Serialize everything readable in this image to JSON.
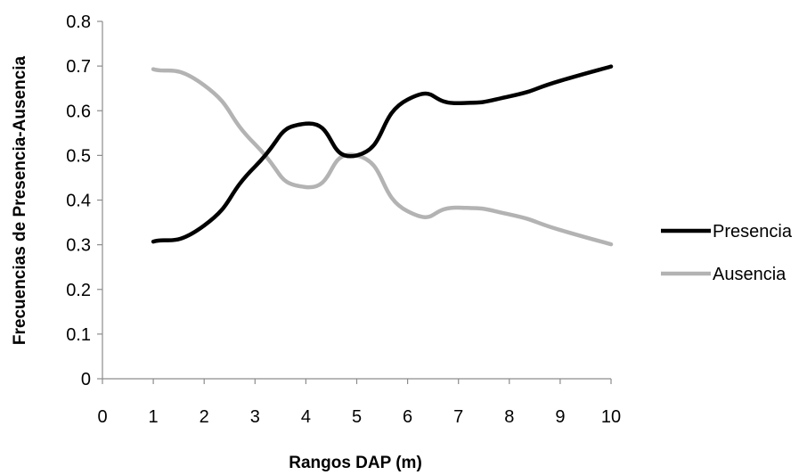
{
  "chart_data": {
    "type": "line",
    "title": "",
    "xlabel": "Rangos DAP (m)",
    "ylabel": "Frecuencias de Presencia-Ausencia",
    "x_ticks": [
      0,
      1,
      2,
      3,
      4,
      5,
      6,
      7,
      8,
      9,
      10
    ],
    "y_ticks": [
      0,
      0.1,
      0.2,
      0.3,
      0.4,
      0.5,
      0.6,
      0.7,
      0.8
    ],
    "xlim": [
      0,
      10
    ],
    "ylim": [
      0,
      0.8
    ],
    "grid": false,
    "legend_position": "right",
    "smooth": true,
    "x": [
      1,
      2,
      3,
      4,
      5,
      6,
      7,
      8,
      9,
      10
    ],
    "series": [
      {
        "name": "Presencia",
        "color": "#000000",
        "values": [
          0.307,
          0.343,
          0.475,
          0.571,
          0.5,
          0.625,
          0.617,
          0.632,
          0.667,
          0.699
        ]
      },
      {
        "name": "Ausencia",
        "color": "#b3b3b3",
        "values": [
          0.693,
          0.657,
          0.525,
          0.429,
          0.5,
          0.375,
          0.383,
          0.368,
          0.333,
          0.301
        ]
      }
    ]
  }
}
